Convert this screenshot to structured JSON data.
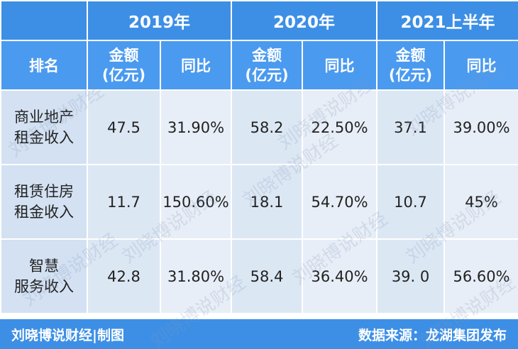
{
  "table": {
    "years": [
      "2019年",
      "2020年",
      "2021上半年"
    ],
    "subheader": {
      "rank": "排名",
      "amount": [
        "金额",
        "(亿元)"
      ],
      "yoy": "同比"
    },
    "rows": [
      {
        "label": [
          "商业地产",
          "租金收入"
        ],
        "cells": [
          "47.5",
          "31.90%",
          "58.2",
          "22.50%",
          "37.1",
          "39.00%"
        ]
      },
      {
        "label": [
          "租赁住房",
          "租金收入"
        ],
        "cells": [
          "11.7",
          "150.60%",
          "18.1",
          "54.70%",
          "10.7",
          "45%"
        ]
      },
      {
        "label": [
          "智慧",
          "服务收入"
        ],
        "cells": [
          "42.8",
          "31.80%",
          "58.4",
          "36.40%",
          "39. 0",
          "56.60%"
        ]
      }
    ]
  },
  "footer": {
    "left": "刘晓博说财经|制图",
    "right": "数据来源：龙湖集团发布"
  },
  "watermark": "刘晓博说财经"
}
